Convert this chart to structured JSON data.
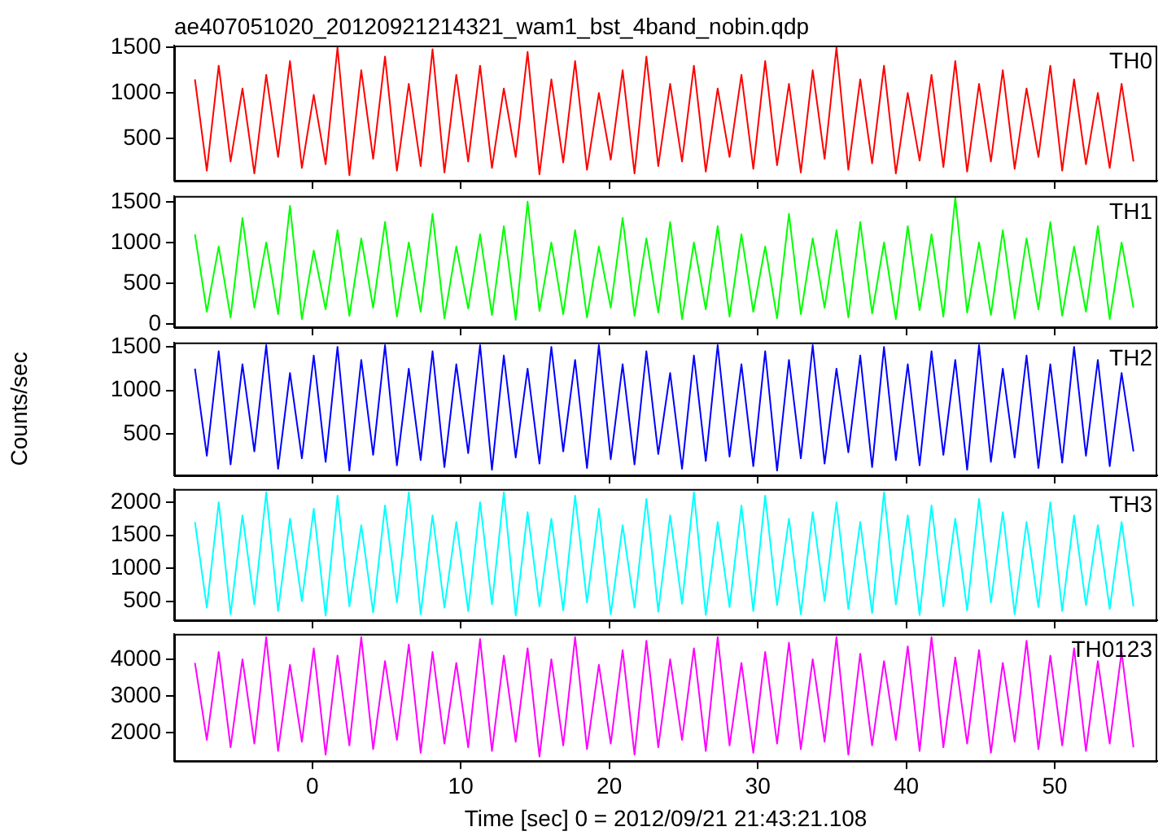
{
  "chart_data": [
    {
      "type": "line",
      "title": "ae407051020_20120921214321_wam1_bst_4band_nobin.qdp",
      "annotations": [
        "TH0"
      ],
      "tick_labels": "y",
      "x": [
        -7.9,
        -7.1,
        -6.3,
        -5.5,
        -4.7,
        -3.9,
        -3.1,
        -2.3,
        -1.5,
        -0.7,
        0.1,
        0.9,
        1.7,
        2.5,
        3.3,
        4.1,
        4.9,
        5.7,
        6.5,
        7.3,
        8.1,
        8.9,
        9.7,
        10.5,
        11.3,
        12.1,
        12.9,
        13.7,
        14.5,
        15.3,
        16.1,
        16.9,
        17.7,
        18.5,
        19.3,
        20.1,
        20.9,
        21.7,
        22.5,
        23.3,
        24.1,
        24.9,
        25.7,
        26.5,
        27.3,
        28.1,
        28.9,
        29.7,
        30.5,
        31.3,
        32.1,
        32.9,
        33.7,
        34.5,
        35.3,
        36.1,
        36.9,
        37.7,
        38.5,
        39.3,
        40.1,
        40.9,
        41.7,
        42.5,
        43.3,
        44.1,
        44.9,
        45.7,
        46.5,
        47.3,
        48.1,
        48.9,
        49.7,
        50.5,
        51.3,
        52.1,
        52.9,
        53.7,
        54.5,
        55.3
      ],
      "xlim": [
        -9.3,
        56.9
      ],
      "xticks": [
        0,
        10,
        20,
        30,
        40,
        50
      ],
      "ylim": [
        40,
        1520
      ],
      "yticks": [
        500,
        1000,
        1500
      ],
      "series": [
        {
          "color": "#ff0000",
          "values": [
            1150,
            150,
            1300,
            250,
            1050,
            120,
            1200,
            300,
            1350,
            180,
            980,
            220,
            1500,
            100,
            1250,
            280,
            1400,
            150,
            1100,
            200,
            1480,
            130,
            1200,
            250,
            1300,
            180,
            1050,
            300,
            1450,
            110,
            1150,
            240,
            1350,
            160,
            1000,
            270,
            1250,
            120,
            1400,
            200,
            1100,
            250,
            1300,
            140,
            1050,
            300,
            1200,
            170,
            1350,
            210,
            1100,
            130,
            1250,
            280,
            1500,
            160,
            1150,
            230,
            1300,
            120,
            1000,
            260,
            1200,
            190,
            1350,
            140,
            1100,
            250,
            1250,
            170,
            1050,
            300,
            1300,
            150,
            1150,
            220,
            1000,
            180,
            1100,
            250
          ]
        }
      ]
    },
    {
      "type": "line",
      "annotations": [
        "TH1"
      ],
      "tick_labels": "y",
      "x": [
        -7.9,
        -7.1,
        -6.3,
        -5.5,
        -4.7,
        -3.9,
        -3.1,
        -2.3,
        -1.5,
        -0.7,
        0.1,
        0.9,
        1.7,
        2.5,
        3.3,
        4.1,
        4.9,
        5.7,
        6.5,
        7.3,
        8.1,
        8.9,
        9.7,
        10.5,
        11.3,
        12.1,
        12.9,
        13.7,
        14.5,
        15.3,
        16.1,
        16.9,
        17.7,
        18.5,
        19.3,
        20.1,
        20.9,
        21.7,
        22.5,
        23.3,
        24.1,
        24.9,
        25.7,
        26.5,
        27.3,
        28.1,
        28.9,
        29.7,
        30.5,
        31.3,
        32.1,
        32.9,
        33.7,
        34.5,
        35.3,
        36.1,
        36.9,
        37.7,
        38.5,
        39.3,
        40.1,
        40.9,
        41.7,
        42.5,
        43.3,
        44.1,
        44.9,
        45.7,
        46.5,
        47.3,
        48.1,
        48.9,
        49.7,
        50.5,
        51.3,
        52.1,
        52.9,
        53.7,
        54.5,
        55.3
      ],
      "xlim": [
        -9.3,
        56.9
      ],
      "xticks": [
        0,
        10,
        20,
        30,
        40,
        50
      ],
      "ylim": [
        -40,
        1570
      ],
      "yticks": [
        0,
        500,
        1000,
        1500
      ],
      "series": [
        {
          "color": "#00ff00",
          "values": [
            1100,
            150,
            950,
            80,
            1300,
            200,
            1000,
            120,
            1450,
            60,
            900,
            180,
            1150,
            100,
            1050,
            200,
            1250,
            90,
            1000,
            150,
            1350,
            70,
            950,
            190,
            1100,
            110,
            1200,
            50,
            1500,
            160,
            1000,
            120,
            1150,
            80,
            950,
            200,
            1300,
            100,
            1050,
            140,
            1250,
            60,
            1000,
            180,
            1200,
            90,
            1100,
            150,
            950,
            70,
            1350,
            120,
            1050,
            200,
            1150,
            80,
            1250,
            130,
            1000,
            60,
            1200,
            170,
            1100,
            90,
            1550,
            140,
            1000,
            110,
            1150,
            70,
            1050,
            180,
            1250,
            100,
            950,
            150,
            1200,
            60,
            1000,
            200
          ]
        }
      ]
    },
    {
      "type": "line",
      "ylabel": "Counts/sec",
      "annotations": [
        "TH2"
      ],
      "tick_labels": "y",
      "x": [
        -7.9,
        -7.1,
        -6.3,
        -5.5,
        -4.7,
        -3.9,
        -3.1,
        -2.3,
        -1.5,
        -0.7,
        0.1,
        0.9,
        1.7,
        2.5,
        3.3,
        4.1,
        4.9,
        5.7,
        6.5,
        7.3,
        8.1,
        8.9,
        9.7,
        10.5,
        11.3,
        12.1,
        12.9,
        13.7,
        14.5,
        15.3,
        16.1,
        16.9,
        17.7,
        18.5,
        19.3,
        20.1,
        20.9,
        21.7,
        22.5,
        23.3,
        24.1,
        24.9,
        25.7,
        26.5,
        27.3,
        28.1,
        28.9,
        29.7,
        30.5,
        31.3,
        32.1,
        32.9,
        33.7,
        34.5,
        35.3,
        36.1,
        36.9,
        37.7,
        38.5,
        39.3,
        40.1,
        40.9,
        41.7,
        42.5,
        43.3,
        44.1,
        44.9,
        45.7,
        46.5,
        47.3,
        48.1,
        48.9,
        49.7,
        50.5,
        51.3,
        52.1,
        52.9,
        53.7,
        54.5,
        55.3
      ],
      "xlim": [
        -9.3,
        56.9
      ],
      "xticks": [
        0,
        10,
        20,
        30,
        40,
        50
      ],
      "ylim": [
        25,
        1550
      ],
      "yticks": [
        500,
        1000,
        1500
      ],
      "series": [
        {
          "color": "#0000ff",
          "values": [
            1250,
            250,
            1450,
            150,
            1300,
            300,
            1520,
            100,
            1200,
            220,
            1400,
            180,
            1500,
            80,
            1350,
            260,
            1520,
            140,
            1250,
            200,
            1450,
            120,
            1300,
            280,
            1520,
            90,
            1400,
            230,
            1250,
            160,
            1500,
            300,
            1350,
            110,
            1520,
            210,
            1300,
            150,
            1450,
            270,
            1200,
            100,
            1400,
            190,
            1520,
            240,
            1300,
            130,
            1450,
            80,
            1350,
            220,
            1520,
            160,
            1250,
            290,
            1400,
            120,
            1500,
            200,
            1300,
            140,
            1450,
            260,
            1350,
            90,
            1520,
            180,
            1250,
            230,
            1400,
            110,
            1300,
            170,
            1500,
            250,
            1350,
            130,
            1200,
            300
          ]
        }
      ]
    },
    {
      "type": "line",
      "annotations": [
        "TH3"
      ],
      "tick_labels": "y",
      "x": [
        -7.9,
        -7.1,
        -6.3,
        -5.5,
        -4.7,
        -3.9,
        -3.1,
        -2.3,
        -1.5,
        -0.7,
        0.1,
        0.9,
        1.7,
        2.5,
        3.3,
        4.1,
        4.9,
        5.7,
        6.5,
        7.3,
        8.1,
        8.9,
        9.7,
        10.5,
        11.3,
        12.1,
        12.9,
        13.7,
        14.5,
        15.3,
        16.1,
        16.9,
        17.7,
        18.5,
        19.3,
        20.1,
        20.9,
        21.7,
        22.5,
        23.3,
        24.1,
        24.9,
        25.7,
        26.5,
        27.3,
        28.1,
        28.9,
        29.7,
        30.5,
        31.3,
        32.1,
        32.9,
        33.7,
        34.5,
        35.3,
        36.1,
        36.9,
        37.7,
        38.5,
        39.3,
        40.1,
        40.9,
        41.7,
        42.5,
        43.3,
        44.1,
        44.9,
        45.7,
        46.5,
        47.3,
        48.1,
        48.9,
        49.7,
        50.5,
        51.3,
        52.1,
        52.9,
        53.7,
        54.5,
        55.3
      ],
      "xlim": [
        -9.3,
        56.9
      ],
      "xticks": [
        0,
        10,
        20,
        30,
        40,
        50
      ],
      "ylim": [
        210,
        2200
      ],
      "yticks": [
        500,
        1000,
        1500,
        2000
      ],
      "series": [
        {
          "color": "#00ffff",
          "values": [
            1700,
            400,
            2000,
            300,
            1800,
            450,
            2150,
            350,
            1750,
            500,
            1900,
            280,
            2100,
            420,
            1650,
            330,
            1950,
            480,
            2150,
            300,
            1800,
            400,
            1700,
            350,
            2000,
            450,
            2150,
            280,
            1850,
            420,
            1750,
            360,
            2100,
            480,
            1900,
            300,
            1650,
            400,
            2050,
            340,
            1800,
            460,
            2150,
            290,
            1700,
            410,
            1950,
            350,
            2100,
            440,
            1750,
            300,
            1850,
            500,
            2000,
            380,
            1700,
            320,
            2150,
            450,
            1800,
            290,
            1950,
            420,
            1750,
            360,
            2050,
            480,
            1850,
            300,
            1700,
            410,
            2000,
            350,
            1800,
            440,
            1650,
            380,
            1700,
            420
          ]
        }
      ]
    },
    {
      "type": "line",
      "xlabel": "Time [sec] 0 = 2012/09/21 21:43:21.108",
      "annotations": [
        "TH0123"
      ],
      "x": [
        -7.9,
        -7.1,
        -6.3,
        -5.5,
        -4.7,
        -3.9,
        -3.1,
        -2.3,
        -1.5,
        -0.7,
        0.1,
        0.9,
        1.7,
        2.5,
        3.3,
        4.1,
        4.9,
        5.7,
        6.5,
        7.3,
        8.1,
        8.9,
        9.7,
        10.5,
        11.3,
        12.1,
        12.9,
        13.7,
        14.5,
        15.3,
        16.1,
        16.9,
        17.7,
        18.5,
        19.3,
        20.1,
        20.9,
        21.7,
        22.5,
        23.3,
        24.1,
        24.9,
        25.7,
        26.5,
        27.3,
        28.1,
        28.9,
        29.7,
        30.5,
        31.3,
        32.1,
        32.9,
        33.7,
        34.5,
        35.3,
        36.1,
        36.9,
        37.7,
        38.5,
        39.3,
        40.1,
        40.9,
        41.7,
        42.5,
        43.3,
        44.1,
        44.9,
        45.7,
        46.5,
        47.3,
        48.1,
        48.9,
        49.7,
        50.5,
        51.3,
        52.1,
        52.9,
        53.7,
        54.5,
        55.3
      ],
      "xlim": [
        -9.3,
        56.9
      ],
      "xticks": [
        0,
        10,
        20,
        30,
        40,
        50
      ],
      "ylim": [
        1230,
        4690
      ],
      "yticks": [
        2000,
        3000,
        4000
      ],
      "series": [
        {
          "color": "#ff00ff",
          "values": [
            3900,
            1800,
            4200,
            1600,
            4000,
            1700,
            4600,
            1500,
            3850,
            1750,
            4300,
            1400,
            4100,
            1650,
            4600,
            1550,
            3950,
            1800,
            4400,
            1450,
            4200,
            1700,
            3900,
            1600,
            4550,
            1500,
            4100,
            1750,
            4300,
            1350,
            4000,
            1650,
            4600,
            1550,
            3850,
            1700,
            4250,
            1400,
            4500,
            1600,
            4000,
            1800,
            4300,
            1500,
            4600,
            1650,
            3900,
            1450,
            4200,
            1700,
            4450,
            1550,
            4000,
            1750,
            4600,
            1400,
            4150,
            1650,
            3950,
            1800,
            4350,
            1500,
            4600,
            1600,
            4050,
            1700,
            4250,
            1450,
            3900,
            1750,
            4500,
            1550,
            4100,
            1650,
            4300,
            1500,
            3950,
            1700,
            4200,
            1600
          ]
        }
      ]
    }
  ]
}
